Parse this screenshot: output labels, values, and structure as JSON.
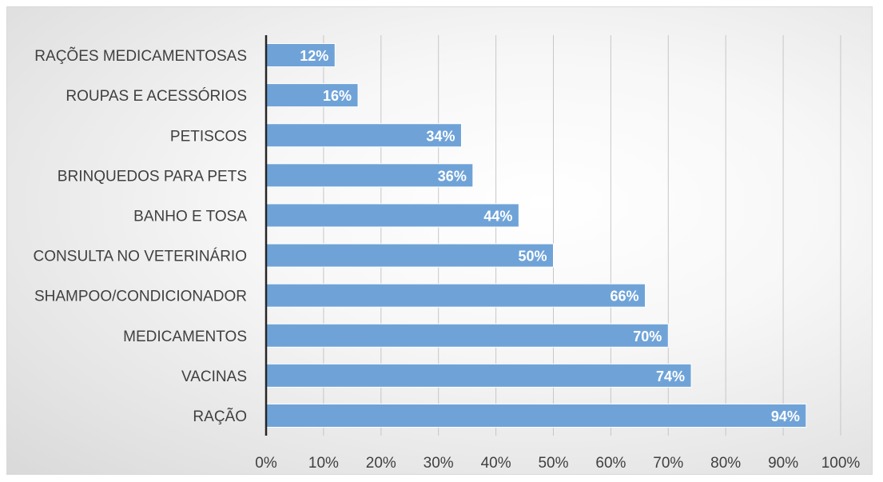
{
  "chart_data": {
    "type": "bar",
    "orientation": "horizontal",
    "categories": [
      "RAÇÕES MEDICAMENTOSAS",
      "ROUPAS E ACESSÓRIOS",
      "PETISCOS",
      "BRINQUEDOS PARA PETS",
      "BANHO E TOSA",
      "CONSULTA NO VETERINÁRIO",
      "SHAMPOO/CONDICIONADOR",
      "MEDICAMENTOS",
      "VACINAS",
      "RAÇÃO"
    ],
    "values": [
      12,
      16,
      34,
      36,
      44,
      50,
      66,
      70,
      74,
      94
    ],
    "data_labels": [
      "12%",
      "16%",
      "34%",
      "36%",
      "44%",
      "50%",
      "66%",
      "70%",
      "74%",
      "94%"
    ],
    "x_ticks": [
      "0%",
      "10%",
      "20%",
      "30%",
      "40%",
      "50%",
      "60%",
      "70%",
      "80%",
      "90%",
      "100%"
    ],
    "xlim": [
      0,
      100
    ],
    "title": "",
    "xlabel": "",
    "ylabel": "",
    "grid": "vertical",
    "legend": "none",
    "colors": {
      "bar": "#6fa3d8",
      "bar_edge": "#ffffff",
      "grid": "#c7c7c7",
      "axis": "#262626",
      "text": "#404040",
      "bar_label": "#ffffff"
    }
  }
}
